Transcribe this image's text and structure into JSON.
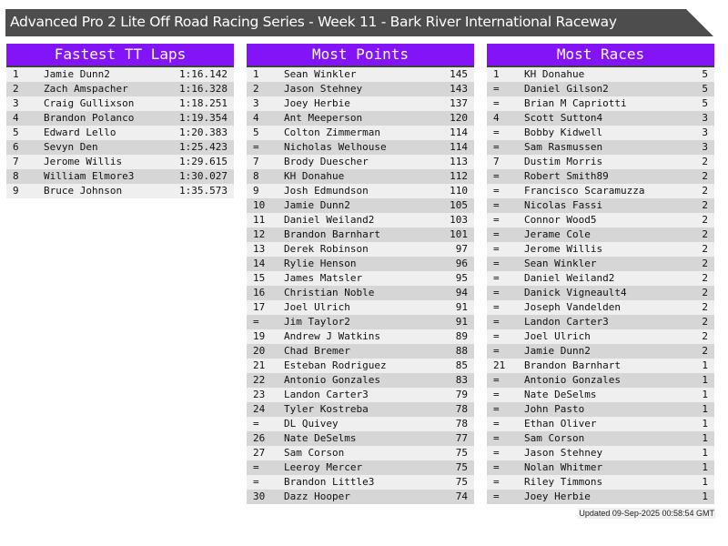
{
  "title": "Advanced Pro 2 Lite Off Road Racing Series - Week 11 - Bark River International Raceway",
  "panels": [
    {
      "heading": "Fastest TT Laps",
      "rows": [
        [
          "1",
          "Jamie Dunn2",
          "1:16.142"
        ],
        [
          "2",
          "Zach Amspacher",
          "1:16.328"
        ],
        [
          "3",
          "Craig Gullixson",
          "1:18.251"
        ],
        [
          "4",
          "Brandon Polanco",
          "1:19.354"
        ],
        [
          "5",
          "Edward Lello",
          "1:20.383"
        ],
        [
          "6",
          "Sevyn Den",
          "1:25.423"
        ],
        [
          "7",
          "Jerome Willis",
          "1:29.615"
        ],
        [
          "8",
          "William Elmore3",
          "1:30.027"
        ],
        [
          "9",
          "Bruce Johnson",
          "1:35.573"
        ]
      ]
    },
    {
      "heading": "Most Points",
      "rows": [
        [
          "1",
          "Sean Winkler",
          "145"
        ],
        [
          "2",
          "Jason Stehney",
          "143"
        ],
        [
          "3",
          "Joey Herbie",
          "137"
        ],
        [
          "4",
          "Ant Meeperson",
          "120"
        ],
        [
          "5",
          "Colton Zimmerman",
          "114"
        ],
        [
          "=",
          "Nicholas Welhouse",
          "114"
        ],
        [
          "7",
          "Brody Duescher",
          "113"
        ],
        [
          "8",
          "KH Donahue",
          "112"
        ],
        [
          "9",
          "Josh Edmundson",
          "110"
        ],
        [
          "10",
          "Jamie Dunn2",
          "105"
        ],
        [
          "11",
          "Daniel Weiland2",
          "103"
        ],
        [
          "12",
          "Brandon Barnhart",
          "101"
        ],
        [
          "13",
          "Derek Robinson",
          "97"
        ],
        [
          "14",
          "Rylie Henson",
          "96"
        ],
        [
          "15",
          "James Matsler",
          "95"
        ],
        [
          "16",
          "Christian Noble",
          "94"
        ],
        [
          "17",
          "Joel Ulrich",
          "91"
        ],
        [
          "=",
          "Jim Taylor2",
          "91"
        ],
        [
          "19",
          "Andrew J Watkins",
          "89"
        ],
        [
          "20",
          "Chad Bremer",
          "88"
        ],
        [
          "21",
          "Esteban Rodriguez",
          "85"
        ],
        [
          "22",
          "Antonio Gonzales",
          "83"
        ],
        [
          "23",
          "Landon Carter3",
          "79"
        ],
        [
          "24",
          "Tyler Kostreba",
          "78"
        ],
        [
          "=",
          "DL Quivey",
          "78"
        ],
        [
          "26",
          "Nate DeSelms",
          "77"
        ],
        [
          "27",
          "Sam Corson",
          "75"
        ],
        [
          "=",
          "Leeroy Mercer",
          "75"
        ],
        [
          "=",
          "Brandon Little3",
          "75"
        ],
        [
          "30",
          "Dazz Hooper",
          "74"
        ]
      ]
    },
    {
      "heading": "Most Races",
      "rows": [
        [
          "1",
          "KH Donahue",
          "5"
        ],
        [
          "=",
          "Daniel Gilson2",
          "5"
        ],
        [
          "=",
          "Brian M Capriotti",
          "5"
        ],
        [
          "4",
          "Scott Sutton4",
          "3"
        ],
        [
          "=",
          "Bobby Kidwell",
          "3"
        ],
        [
          "=",
          "Sam Rasmussen",
          "3"
        ],
        [
          "7",
          "Dustim Morris",
          "2"
        ],
        [
          "=",
          "Robert Smith89",
          "2"
        ],
        [
          "=",
          "Francisco Scaramuzza",
          "2"
        ],
        [
          "=",
          "Nicolas Fassi",
          "2"
        ],
        [
          "=",
          "Connor Wood5",
          "2"
        ],
        [
          "=",
          "Jerame Cole",
          "2"
        ],
        [
          "=",
          "Jerome Willis",
          "2"
        ],
        [
          "=",
          "Sean Winkler",
          "2"
        ],
        [
          "=",
          "Daniel Weiland2",
          "2"
        ],
        [
          "=",
          "Danick Vigneault4",
          "2"
        ],
        [
          "=",
          "Joseph Vandelden",
          "2"
        ],
        [
          "=",
          "Landon Carter3",
          "2"
        ],
        [
          "=",
          "Joel Ulrich",
          "2"
        ],
        [
          "=",
          "Jamie Dunn2",
          "2"
        ],
        [
          "21",
          "Brandon Barnhart",
          "1"
        ],
        [
          "=",
          "Antonio Gonzales",
          "1"
        ],
        [
          "=",
          "Nate DeSelms",
          "1"
        ],
        [
          "=",
          "John Pasto",
          "1"
        ],
        [
          "=",
          "Ethan Oliver",
          "1"
        ],
        [
          "=",
          "Sam Corson",
          "1"
        ],
        [
          "=",
          "Jason Stehney",
          "1"
        ],
        [
          "=",
          "Nolan Whitmer",
          "1"
        ],
        [
          "=",
          "Riley Timmons",
          "1"
        ],
        [
          "=",
          "Joey Herbie",
          "1"
        ]
      ]
    }
  ],
  "updated": "Updated 09-Sep-2025 00:58:54 GMT",
  "colors": {
    "header": "#8414f8",
    "titlebar": "#4d4d4d"
  }
}
